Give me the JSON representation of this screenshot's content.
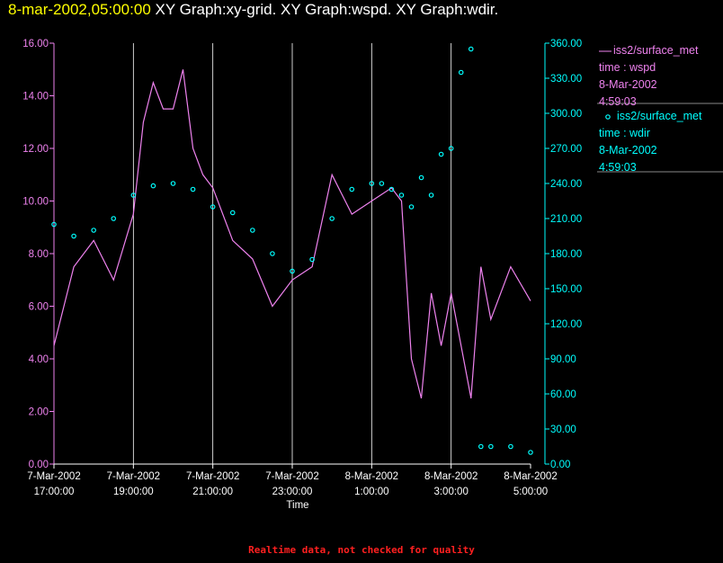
{
  "header": {
    "date": "8-mar-2002,05:00:00",
    "graphs": "XY Graph:xy-grid.  XY Graph:wspd.  XY Graph:wdir."
  },
  "footer": "Realtime data, not checked for quality",
  "colors": {
    "wspd": "#ee82ee",
    "wdir": "#00ffff",
    "date": "#ffff00",
    "footer": "#ff2020"
  },
  "chart_data": {
    "type": "line",
    "xlabel": "Time",
    "x_ticks": [
      [
        "7-Mar-2002",
        "17:00:00"
      ],
      [
        "7-Mar-2002",
        "19:00:00"
      ],
      [
        "7-Mar-2002",
        "21:00:00"
      ],
      [
        "7-Mar-2002",
        "23:00:00"
      ],
      [
        "8-Mar-2002",
        "1:00:00"
      ],
      [
        "8-Mar-2002",
        "3:00:00"
      ],
      [
        "8-Mar-2002",
        "5:00:00"
      ]
    ],
    "x_range_hours": [
      0,
      12
    ],
    "y_left": {
      "range": [
        0,
        16
      ],
      "ticks": [
        "0.00",
        "2.00",
        "4.00",
        "6.00",
        "8.00",
        "10.00",
        "12.00",
        "14.00",
        "16.00"
      ]
    },
    "y_right": {
      "range": [
        0,
        360
      ],
      "ticks": [
        "0.00",
        "30.00",
        "60.00",
        "90.00",
        "120.00",
        "150.00",
        "180.00",
        "210.00",
        "240.00",
        "270.00",
        "300.00",
        "330.00",
        "360.00"
      ]
    },
    "series": [
      {
        "name": "iss2/surface_met",
        "label": "time : wspd",
        "date": "8-Mar-2002",
        "time": "4:59:03",
        "style": "line",
        "axis": "left",
        "x_hours": [
          0,
          0.5,
          1,
          1.5,
          2,
          2.25,
          2.5,
          2.75,
          3,
          3.25,
          3.5,
          3.75,
          4,
          4.5,
          5,
          5.5,
          6,
          6.5,
          7,
          7.5,
          8,
          8.5,
          8.75,
          9,
          9.25,
          9.5,
          9.75,
          10,
          10.5,
          10.75,
          11,
          11.5,
          12
        ],
        "values": [
          4.5,
          7.5,
          8.5,
          7.0,
          9.5,
          13.0,
          14.5,
          13.5,
          13.5,
          15.0,
          12.0,
          11.0,
          10.5,
          8.5,
          7.8,
          6.0,
          7.0,
          7.5,
          11.0,
          9.5,
          10.0,
          10.5,
          10.0,
          4.0,
          2.5,
          6.5,
          4.5,
          6.5,
          2.5,
          7.5,
          5.5,
          7.5,
          6.2
        ]
      },
      {
        "name": "iss2/surface_met",
        "label": "time : wdir",
        "date": "8-Mar-2002",
        "time": "4:59:03",
        "style": "markers",
        "axis": "right",
        "x_hours": [
          0,
          0.5,
          1,
          1.5,
          2,
          2.5,
          3,
          3.5,
          4,
          4.5,
          5,
          5.5,
          6,
          6.5,
          7,
          7.5,
          8,
          8.25,
          8.5,
          8.75,
          9,
          9.25,
          9.5,
          9.75,
          10,
          10.25,
          10.5,
          10.75,
          11,
          11.5,
          12
        ],
        "values": [
          205,
          195,
          200,
          210,
          230,
          238,
          240,
          235,
          220,
          215,
          200,
          180,
          165,
          175,
          210,
          235,
          240,
          240,
          235,
          230,
          220,
          245,
          230,
          265,
          270,
          335,
          355,
          15,
          15,
          15,
          10
        ]
      }
    ]
  }
}
